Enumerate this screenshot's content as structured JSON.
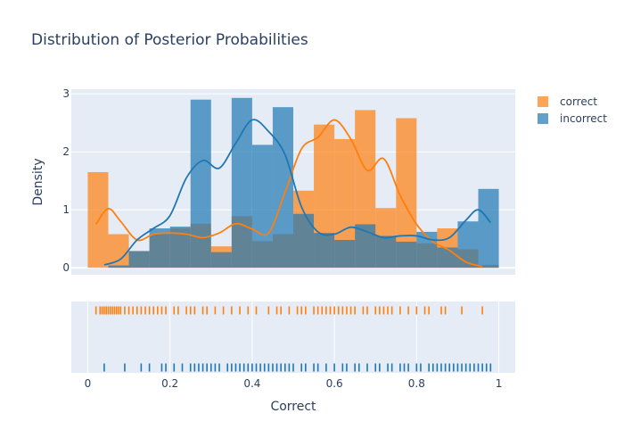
{
  "chart_data": {
    "type": "histogram",
    "title": "Distribution of Posterior Probabilities",
    "xlabel": "Correct",
    "ylabel": "Density",
    "xlim": [
      -0.04,
      1.04
    ],
    "ylim": [
      -0.12,
      3.08
    ],
    "x_ticks": [
      0,
      0.2,
      0.4,
      0.6,
      0.8,
      1
    ],
    "x_tick_labels": [
      "0",
      "0.2",
      "0.4",
      "0.6",
      "0.8",
      "1"
    ],
    "y_ticks": [
      0,
      1,
      2,
      3
    ],
    "y_tick_labels": [
      "0",
      "1",
      "2",
      "3"
    ],
    "bin_width": 0.05,
    "legend_position": "top-right",
    "series": [
      {
        "name": "correct",
        "color": "#ff7f0e",
        "bin_starts": [
          0.0,
          0.05,
          0.1,
          0.15,
          0.2,
          0.25,
          0.3,
          0.35,
          0.4,
          0.45,
          0.5,
          0.55,
          0.6,
          0.65,
          0.7,
          0.75,
          0.8,
          0.85,
          0.9,
          0.95
        ],
        "density": [
          1.65,
          0.58,
          0.28,
          0.58,
          0.68,
          0.76,
          0.37,
          0.89,
          0.46,
          0.58,
          1.33,
          2.47,
          2.22,
          2.72,
          1.03,
          2.58,
          0.42,
          0.68,
          0.32,
          0.05
        ],
        "kde_x": [
          0.02,
          0.05,
          0.08,
          0.12,
          0.16,
          0.2,
          0.24,
          0.28,
          0.32,
          0.36,
          0.4,
          0.44,
          0.48,
          0.52,
          0.56,
          0.6,
          0.64,
          0.68,
          0.72,
          0.76,
          0.8,
          0.84,
          0.88,
          0.92,
          0.96
        ],
        "kde_y": [
          0.75,
          1.02,
          0.8,
          0.48,
          0.58,
          0.6,
          0.58,
          0.52,
          0.6,
          0.76,
          0.67,
          0.6,
          1.3,
          2.05,
          2.25,
          2.55,
          2.22,
          1.68,
          1.88,
          1.25,
          0.75,
          0.45,
          0.3,
          0.1,
          0.02
        ],
        "rug": [
          0.02,
          0.03,
          0.035,
          0.04,
          0.045,
          0.05,
          0.055,
          0.06,
          0.065,
          0.07,
          0.075,
          0.08,
          0.09,
          0.1,
          0.11,
          0.12,
          0.13,
          0.14,
          0.15,
          0.16,
          0.17,
          0.18,
          0.19,
          0.21,
          0.22,
          0.24,
          0.25,
          0.26,
          0.28,
          0.29,
          0.31,
          0.33,
          0.35,
          0.37,
          0.39,
          0.41,
          0.44,
          0.46,
          0.47,
          0.49,
          0.51,
          0.52,
          0.53,
          0.55,
          0.56,
          0.57,
          0.58,
          0.59,
          0.6,
          0.61,
          0.62,
          0.63,
          0.64,
          0.65,
          0.67,
          0.68,
          0.7,
          0.71,
          0.72,
          0.73,
          0.74,
          0.76,
          0.78,
          0.8,
          0.82,
          0.83,
          0.86,
          0.87,
          0.91,
          0.96
        ]
      },
      {
        "name": "incorrect",
        "color": "#1f77b4",
        "bin_starts": [
          0.0,
          0.05,
          0.1,
          0.15,
          0.2,
          0.25,
          0.3,
          0.35,
          0.4,
          0.45,
          0.5,
          0.55,
          0.6,
          0.65,
          0.7,
          0.75,
          0.8,
          0.85,
          0.9,
          0.95
        ],
        "density": [
          0.0,
          0.04,
          0.29,
          0.68,
          0.71,
          2.9,
          0.27,
          2.93,
          2.12,
          2.77,
          0.93,
          0.6,
          0.48,
          0.75,
          0.55,
          0.45,
          0.62,
          0.35,
          0.8,
          1.36
        ],
        "kde_x": [
          0.04,
          0.08,
          0.12,
          0.16,
          0.2,
          0.24,
          0.28,
          0.32,
          0.36,
          0.4,
          0.44,
          0.48,
          0.52,
          0.56,
          0.6,
          0.64,
          0.68,
          0.72,
          0.76,
          0.8,
          0.84,
          0.88,
          0.92,
          0.95,
          0.98
        ],
        "kde_y": [
          0.05,
          0.15,
          0.48,
          0.68,
          0.9,
          1.55,
          1.85,
          1.72,
          2.15,
          2.55,
          2.35,
          1.95,
          1.05,
          0.62,
          0.58,
          0.7,
          0.62,
          0.52,
          0.55,
          0.55,
          0.48,
          0.52,
          0.82,
          1.0,
          0.78
        ],
        "rug": [
          0.04,
          0.09,
          0.13,
          0.15,
          0.18,
          0.19,
          0.21,
          0.23,
          0.25,
          0.26,
          0.27,
          0.28,
          0.29,
          0.3,
          0.31,
          0.32,
          0.34,
          0.35,
          0.36,
          0.37,
          0.38,
          0.39,
          0.4,
          0.41,
          0.42,
          0.43,
          0.44,
          0.45,
          0.46,
          0.47,
          0.48,
          0.49,
          0.5,
          0.52,
          0.53,
          0.55,
          0.56,
          0.58,
          0.6,
          0.62,
          0.63,
          0.65,
          0.66,
          0.68,
          0.7,
          0.71,
          0.73,
          0.74,
          0.76,
          0.77,
          0.78,
          0.8,
          0.81,
          0.83,
          0.84,
          0.85,
          0.86,
          0.87,
          0.88,
          0.89,
          0.9,
          0.91,
          0.92,
          0.93,
          0.94,
          0.95,
          0.96,
          0.97,
          0.98
        ]
      }
    ]
  }
}
